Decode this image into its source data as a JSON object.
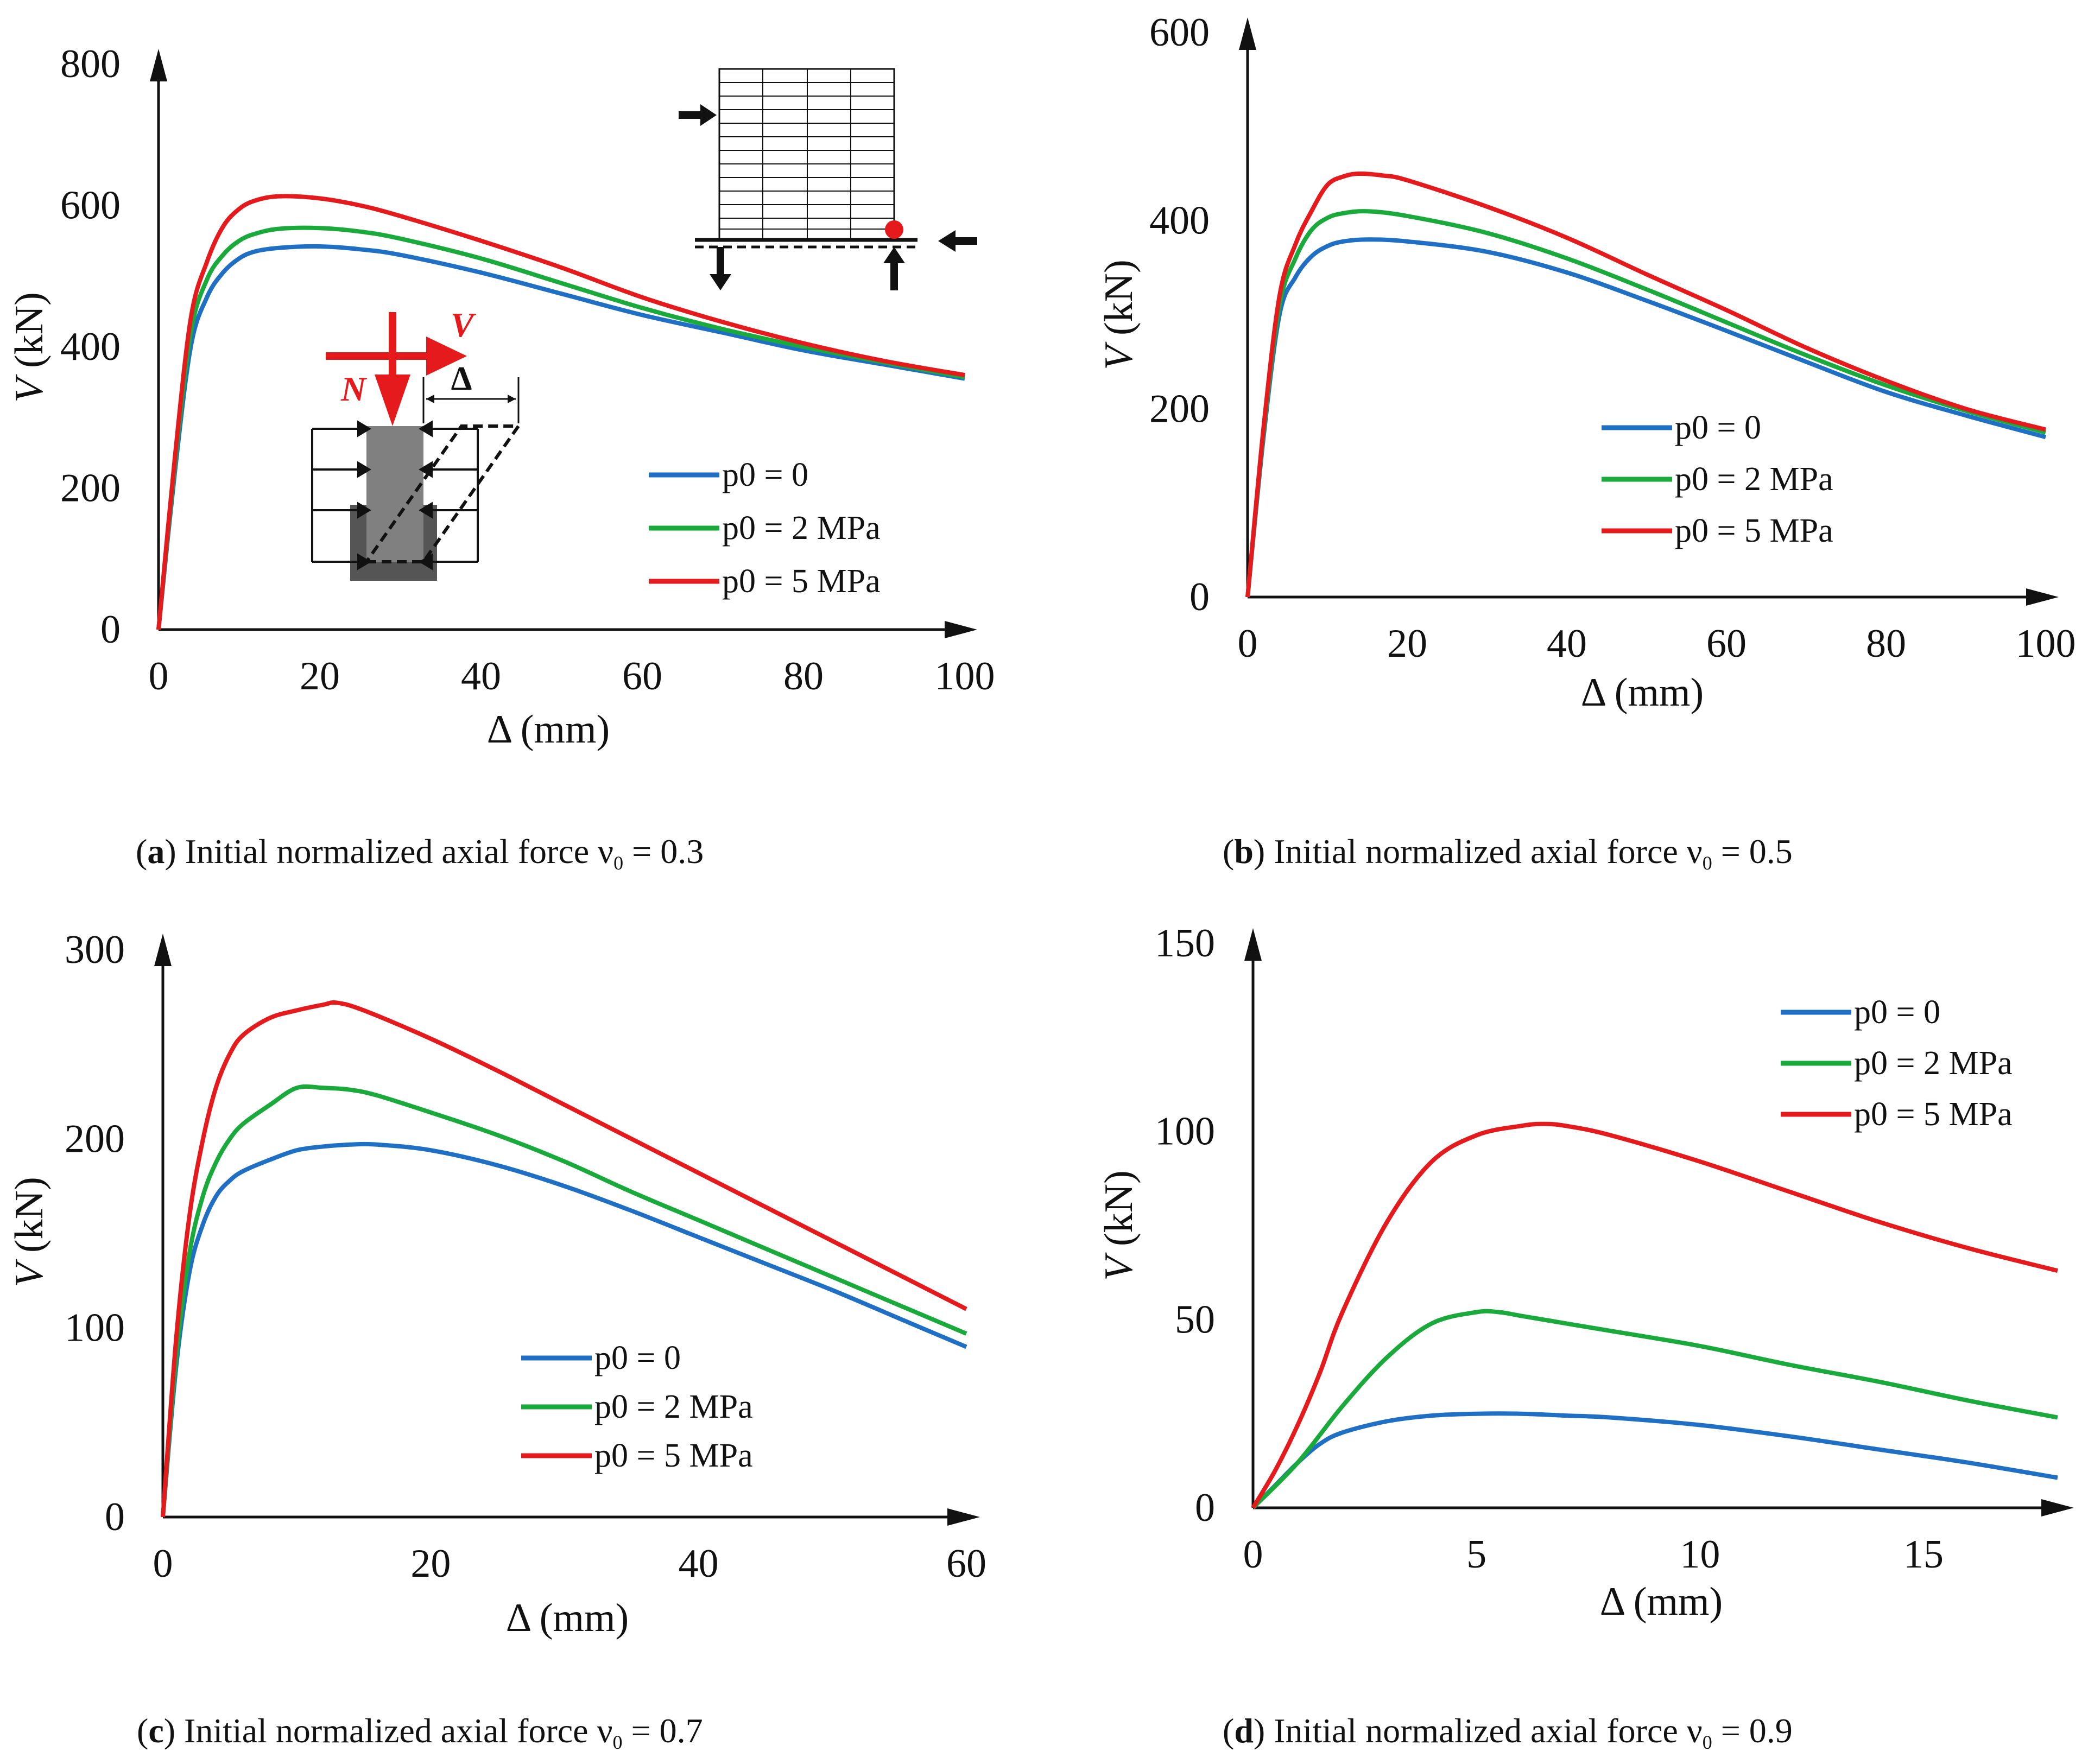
{
  "colors": {
    "p0_0": "#1f6fc4",
    "p0_2": "#1aaa3c",
    "p0_5": "#e41a1c",
    "axis": "#111111"
  },
  "inset_labels": {
    "force_n": "N",
    "force_v": "V",
    "delta": "Δ"
  },
  "chart_data": [
    {
      "type": "line",
      "panel": "a",
      "caption_letter": "a",
      "caption_text": " Initial normalized axial force ν",
      "caption_sub": "0",
      "caption_value": " = 0.3",
      "xlabel": "Δ (mm)",
      "ylabel": "V (kN)",
      "xlim": [
        0,
        100
      ],
      "ylim": [
        0,
        800
      ],
      "xticks": [
        0,
        20,
        40,
        60,
        80,
        100
      ],
      "yticks": [
        0,
        200,
        400,
        600,
        800
      ],
      "legend": [
        "p0 = 0",
        "p0 = 2 MPa",
        "p0 = 5 MPa"
      ],
      "series": [
        {
          "name": "p0 = 0",
          "x": [
            0,
            2,
            4,
            6,
            8,
            10,
            12,
            15,
            20,
            25,
            30,
            40,
            50,
            60,
            70,
            80,
            90,
            100
          ],
          "y": [
            0,
            220,
            400,
            470,
            505,
            525,
            535,
            540,
            542,
            538,
            530,
            505,
            475,
            445,
            420,
            395,
            375,
            355
          ]
        },
        {
          "name": "p0 = 2 MPa",
          "x": [
            0,
            2,
            4,
            6,
            8,
            10,
            12,
            15,
            20,
            25,
            30,
            40,
            50,
            60,
            70,
            80,
            90,
            100
          ],
          "y": [
            0,
            230,
            420,
            495,
            530,
            550,
            560,
            567,
            568,
            563,
            553,
            525,
            490,
            455,
            425,
            400,
            378,
            357
          ]
        },
        {
          "name": "p0 = 5 MPa",
          "x": [
            0,
            2,
            4,
            6,
            8,
            10,
            12,
            15,
            20,
            25,
            30,
            40,
            50,
            60,
            70,
            80,
            90,
            100
          ],
          "y": [
            0,
            240,
            440,
            520,
            570,
            595,
            607,
            613,
            610,
            600,
            585,
            550,
            512,
            470,
            435,
            405,
            380,
            360
          ]
        }
      ]
    },
    {
      "type": "line",
      "panel": "b",
      "caption_letter": "b",
      "caption_text": " Initial normalized axial force ν",
      "caption_sub": "0",
      "caption_value": " = 0.5",
      "xlabel": "Δ (mm)",
      "ylabel": "V (kN)",
      "xlim": [
        0,
        100
      ],
      "ylim": [
        0,
        600
      ],
      "xticks": [
        0,
        20,
        40,
        60,
        80,
        100
      ],
      "yticks": [
        0,
        200,
        400,
        600
      ],
      "legend": [
        "p0 = 0",
        "p0 = 2 MPa",
        "p0 = 5 MPa"
      ],
      "series": [
        {
          "name": "p0 = 0",
          "x": [
            0,
            2,
            4,
            6,
            8,
            10,
            12,
            15,
            20,
            30,
            40,
            50,
            60,
            70,
            80,
            90,
            100
          ],
          "y": [
            0,
            170,
            300,
            340,
            362,
            373,
            378,
            380,
            378,
            367,
            345,
            315,
            283,
            250,
            218,
            193,
            170
          ]
        },
        {
          "name": "p0 = 2 MPa",
          "x": [
            0,
            2,
            4,
            6,
            8,
            10,
            12,
            15,
            20,
            30,
            40,
            50,
            60,
            70,
            80,
            90,
            100
          ],
          "y": [
            0,
            175,
            310,
            360,
            390,
            403,
            408,
            410,
            405,
            387,
            360,
            327,
            292,
            257,
            225,
            198,
            175
          ]
        },
        {
          "name": "p0 = 5 MPa",
          "x": [
            0,
            2,
            4,
            6,
            8,
            10,
            12,
            14,
            17,
            20,
            30,
            40,
            50,
            60,
            70,
            80,
            90,
            100
          ],
          "y": [
            0,
            180,
            320,
            375,
            410,
            438,
            447,
            450,
            448,
            443,
            415,
            382,
            343,
            305,
            265,
            230,
            200,
            178
          ]
        }
      ]
    },
    {
      "type": "line",
      "panel": "c",
      "caption_letter": "c",
      "caption_text": " Initial normalized axial force ν",
      "caption_sub": "0",
      "caption_value": " = 0.7",
      "xlabel": "Δ (mm)",
      "ylabel": "V (kN)",
      "xlim": [
        0,
        60
      ],
      "ylim": [
        0,
        300
      ],
      "xticks": [
        0,
        20,
        40,
        60
      ],
      "yticks": [
        0,
        100,
        200,
        300
      ],
      "legend": [
        "p0 = 0",
        "p0 = 2 MPa",
        "p0 = 5 MPa"
      ],
      "series": [
        {
          "name": "p0 = 0",
          "x": [
            0,
            1,
            2,
            3,
            4,
            5,
            6,
            8,
            10,
            12,
            14,
            16,
            20,
            25,
            30,
            35,
            40,
            45,
            50,
            55,
            60
          ],
          "y": [
            0,
            80,
            130,
            155,
            170,
            178,
            183,
            189,
            194,
            196,
            197,
            197,
            194,
            186,
            175,
            162,
            148,
            134,
            120,
            105,
            90
          ]
        },
        {
          "name": "p0 = 2 MPa",
          "x": [
            0,
            1,
            2,
            3,
            4,
            5,
            6,
            8,
            10,
            12,
            14,
            16,
            20,
            25,
            30,
            35,
            40,
            45,
            50,
            55,
            60
          ],
          "y": [
            0,
            85,
            140,
            170,
            188,
            200,
            208,
            218,
            227,
            227,
            226,
            223,
            214,
            202,
            188,
            172,
            157,
            142,
            127,
            112,
            97
          ]
        },
        {
          "name": "p0 = 5 MPa",
          "x": [
            0,
            1,
            2,
            3,
            4,
            5,
            6,
            8,
            10,
            12,
            13,
            15,
            20,
            25,
            30,
            35,
            40,
            45,
            50,
            55,
            60
          ],
          "y": [
            0,
            95,
            160,
            200,
            228,
            245,
            255,
            264,
            268,
            271,
            272,
            268,
            253,
            236,
            218,
            200,
            182,
            164,
            146,
            128,
            110
          ]
        }
      ]
    },
    {
      "type": "line",
      "panel": "d",
      "caption_letter": "d",
      "caption_text": " Initial normalized axial force ν",
      "caption_sub": "0",
      "caption_value": " = 0.9",
      "xlabel": "Δ (mm)",
      "ylabel": "V (kN)",
      "xlim": [
        0,
        18
      ],
      "ylim": [
        0,
        150
      ],
      "xticks": [
        0,
        5,
        10,
        15
      ],
      "yticks": [
        0,
        50,
        100,
        150
      ],
      "legend": [
        "p0 = 0",
        "p0 = 2 MPa",
        "p0 = 5 MPa"
      ],
      "series": [
        {
          "name": "p0 = 0",
          "x": [
            0,
            0.5,
            1,
            1.5,
            2,
            3,
            4,
            5,
            6,
            7,
            8,
            10,
            12,
            14,
            16,
            18
          ],
          "y": [
            0,
            6,
            12,
            17,
            20,
            23,
            24.5,
            25,
            25,
            24.5,
            24,
            22,
            19,
            15.5,
            12,
            8
          ]
        },
        {
          "name": "p0 = 2 MPa",
          "x": [
            0,
            1,
            2,
            3,
            4,
            5,
            5.5,
            6,
            7,
            8,
            10,
            12,
            14,
            16,
            18
          ],
          "y": [
            0,
            12,
            27,
            40,
            49,
            52,
            52,
            51,
            49,
            47,
            43,
            38,
            33.5,
            28.5,
            24
          ]
        },
        {
          "name": "p0 = 5 MPa",
          "x": [
            0,
            0.5,
            1,
            1.5,
            2,
            3,
            4,
            5,
            6,
            6.5,
            7,
            8,
            10,
            12,
            14,
            16,
            18
          ],
          "y": [
            0,
            10,
            22,
            36,
            52,
            76,
            92,
            99,
            101.5,
            102,
            101.5,
            99,
            92,
            84,
            76,
            69,
            63
          ]
        }
      ]
    }
  ]
}
